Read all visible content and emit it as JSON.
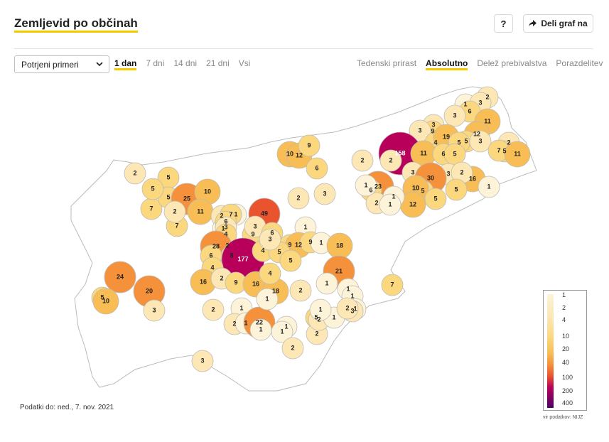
{
  "header": {
    "title": "Zemljevid po občinah",
    "help_label": "?",
    "share_label": "Deli graf na"
  },
  "controls": {
    "metric_select": "Potrjeni primeri",
    "range_tabs": [
      "1 dan",
      "7 dni",
      "14 dni",
      "21 dni",
      "Vsi"
    ],
    "range_active": "1 dan",
    "mode_tabs": [
      "Tedenski prirast",
      "Absolutno",
      "Delež prebivalstva",
      "Porazdelitev"
    ],
    "mode_active": "Absolutno"
  },
  "map": {
    "values": [
      "1",
      "2",
      "3",
      "6",
      "3",
      "11",
      "3",
      "9",
      "3",
      "4",
      "19",
      "12",
      "5",
      "5",
      "158",
      "11",
      "6",
      "5",
      "3",
      "2",
      "5",
      "7",
      "11",
      "10",
      "12",
      "9",
      "6",
      "2",
      "2",
      "3",
      "3",
      "30",
      "10",
      "16",
      "1",
      "5",
      "2",
      "23",
      "6",
      "5",
      "10",
      "12",
      "2",
      "5",
      "1",
      "1",
      "1",
      "3",
      "2",
      "7",
      "5",
      "5",
      "7",
      "25",
      "10",
      "2",
      "5",
      "2",
      "1",
      "11",
      "49",
      "2",
      "1",
      "7",
      "6",
      "3",
      "2",
      "4",
      "9",
      "9",
      "1",
      "28",
      "8",
      "12",
      "9",
      "1",
      "18",
      "3",
      "6",
      "177",
      "4",
      "5",
      "5",
      "3",
      "6",
      "4",
      "21",
      "24",
      "1",
      "16",
      "2",
      "9",
      "16",
      "18",
      "2",
      "4",
      "1",
      "1",
      "5",
      "20",
      "7",
      "10",
      "3",
      "2",
      "1",
      "2",
      "1",
      "5",
      "2",
      "22",
      "1",
      "3",
      "2",
      "1",
      "1",
      "1",
      "2",
      "1",
      "1",
      "1",
      "3",
      "2",
      "1",
      "1"
    ],
    "colors": {
      "white": "#ffffff",
      "c1": "#fdf3d8",
      "c2": "#fce7b5",
      "c4": "#fbd77e",
      "c10": "#f8bd55",
      "c20": "#f5913a",
      "c40": "#e9542e",
      "c100": "#b8005a",
      "c400": "#4b0066",
      "border": "#bbbbbb"
    }
  },
  "footer": {
    "updated": "Podatki do: ned., 7. nov. 2021",
    "source": "vir podatkov: NIJZ"
  },
  "legend": {
    "labels": [
      "1",
      "2",
      "4",
      "10",
      "20",
      "40",
      "100",
      "200",
      "400"
    ]
  }
}
